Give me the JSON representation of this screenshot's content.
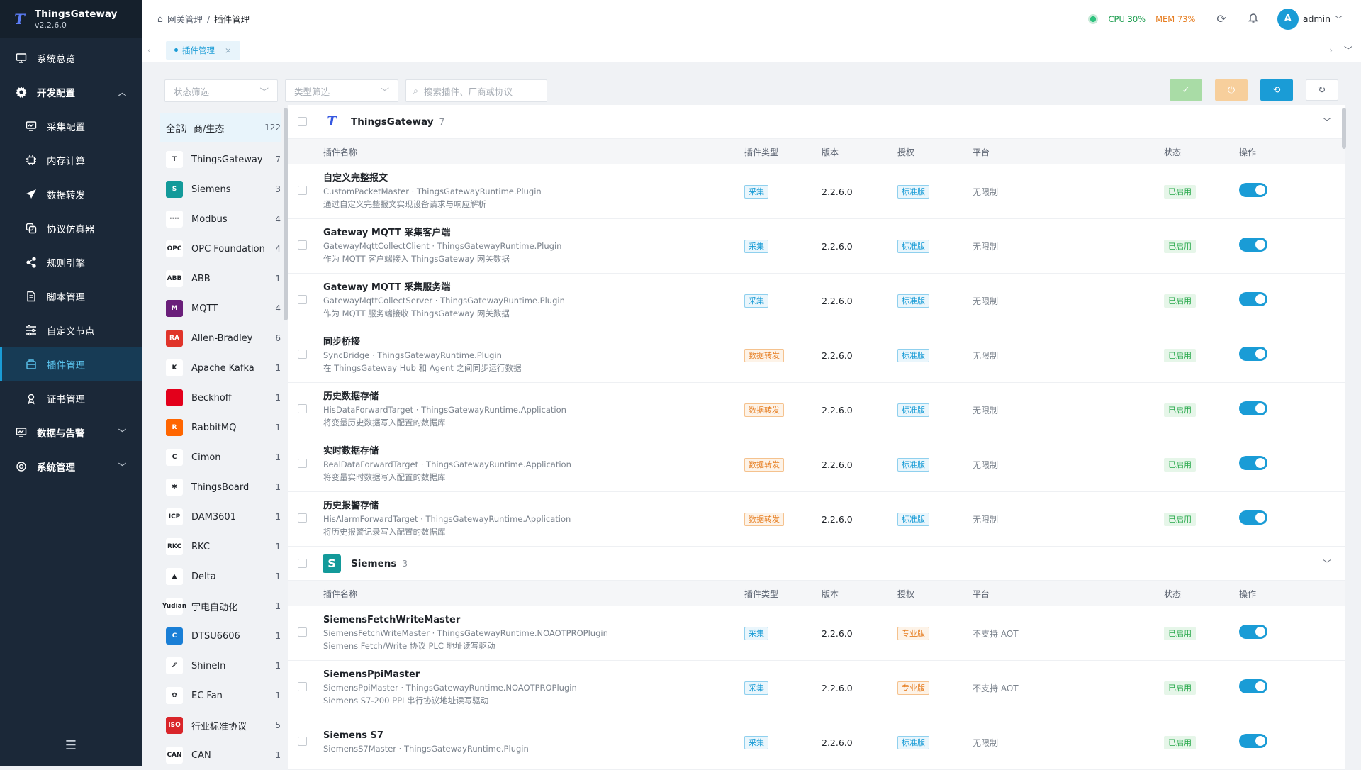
{
  "app": {
    "name": "ThingsGateway",
    "version": "v2.2.6.0"
  },
  "sidebar": {
    "items": [
      {
        "label": "系统总览",
        "icon": "monitor-icon"
      },
      {
        "label": "开发配置",
        "icon": "gear-icon",
        "expanded": true
      },
      {
        "label": "采集配置",
        "icon": "collect-icon"
      },
      {
        "label": "内存计算",
        "icon": "chip-icon"
      },
      {
        "label": "数据转发",
        "icon": "send-icon"
      },
      {
        "label": "协议仿真器",
        "icon": "simulator-icon"
      },
      {
        "label": "规则引擎",
        "icon": "share-icon"
      },
      {
        "label": "脚本管理",
        "icon": "document-icon"
      },
      {
        "label": "自定义节点",
        "icon": "sliders-icon"
      },
      {
        "label": "插件管理",
        "icon": "plugin-icon",
        "active": true
      },
      {
        "label": "证书管理",
        "icon": "certificate-icon"
      },
      {
        "label": "数据与告警",
        "icon": "monitor-icon",
        "expanded": false
      },
      {
        "label": "系统管理",
        "icon": "settings-icon",
        "expanded": false
      }
    ]
  },
  "header": {
    "breadcrumb": [
      "网关管理",
      "插件管理"
    ],
    "cpu": "CPU 30%",
    "mem": "MEM 73%",
    "user": "admin",
    "avatar_letter": "A"
  },
  "tabs": [
    {
      "label": "插件管理"
    }
  ],
  "filters": {
    "status_placeholder": "状态筛选",
    "type_placeholder": "类型筛选",
    "search_placeholder": "搜索插件、厂商或协议"
  },
  "vendors": {
    "all": {
      "label": "全部厂商/生态",
      "count": "122"
    },
    "items": [
      {
        "name": "ThingsGateway",
        "count": "7",
        "abbr": "T",
        "color": "#ffffff"
      },
      {
        "name": "Siemens",
        "count": "3",
        "abbr": "S",
        "color": "#139a9a"
      },
      {
        "name": "Modbus",
        "count": "4",
        "abbr": "····",
        "color": "#ffffff"
      },
      {
        "name": "OPC Foundation",
        "count": "4",
        "abbr": "OPC",
        "color": "#ffffff"
      },
      {
        "name": "ABB",
        "count": "1",
        "abbr": "ABB",
        "color": "#ffffff"
      },
      {
        "name": "MQTT",
        "count": "4",
        "abbr": "M",
        "color": "#6a1f7a"
      },
      {
        "name": "Allen-Bradley",
        "count": "6",
        "abbr": "RA",
        "color": "#e0342a"
      },
      {
        "name": "Apache Kafka",
        "count": "1",
        "abbr": "K",
        "color": "#ffffff"
      },
      {
        "name": "Beckhoff",
        "count": "1",
        "abbr": "",
        "color": "#e3001b"
      },
      {
        "name": "RabbitMQ",
        "count": "1",
        "abbr": "R",
        "color": "#ff6600"
      },
      {
        "name": "Cimon",
        "count": "1",
        "abbr": "C",
        "color": "#ffffff"
      },
      {
        "name": "ThingsBoard",
        "count": "1",
        "abbr": "✱",
        "color": "#ffffff"
      },
      {
        "name": "DAM3601",
        "count": "1",
        "abbr": "ICP",
        "color": "#ffffff"
      },
      {
        "name": "RKC",
        "count": "1",
        "abbr": "RKC",
        "color": "#ffffff"
      },
      {
        "name": "Delta",
        "count": "1",
        "abbr": "▲",
        "color": "#ffffff"
      },
      {
        "name": "宇电自动化",
        "count": "1",
        "abbr": "Yudian",
        "color": "#ffffff"
      },
      {
        "name": "DTSU6606",
        "count": "1",
        "abbr": "C",
        "color": "#1a7fd6"
      },
      {
        "name": "ShineIn",
        "count": "1",
        "abbr": "⁄⁄",
        "color": "#ffffff"
      },
      {
        "name": "EC Fan",
        "count": "1",
        "abbr": "✿",
        "color": "#ffffff"
      },
      {
        "name": "行业标准协议",
        "count": "5",
        "abbr": "ISO",
        "color": "#d9252a"
      },
      {
        "name": "CAN",
        "count": "1",
        "abbr": "CAN",
        "color": "#ffffff"
      }
    ]
  },
  "table_headers": {
    "name": "插件名称",
    "type": "插件类型",
    "version": "版本",
    "license": "授权",
    "platform": "平台",
    "status": "状态",
    "op": "操作"
  },
  "groups": [
    {
      "name": "ThingsGateway",
      "count": "7",
      "rows": [
        {
          "name": "自定义完整报文",
          "sub": "CustomPacketMaster · ThingsGatewayRuntime.Plugin",
          "desc": "通过自定义完整报文实现设备请求与响应解析",
          "type": "采集",
          "type_kind": "blue",
          "version": "2.2.6.0",
          "license": "标准版",
          "license_kind": "blue",
          "platform": "无限制",
          "status": "已启用",
          "enabled": true
        },
        {
          "name": "Gateway MQTT 采集客户端",
          "sub": "GatewayMqttCollectClient · ThingsGatewayRuntime.Plugin",
          "desc": "作为 MQTT 客户端接入 ThingsGateway 网关数据",
          "type": "采集",
          "type_kind": "blue",
          "version": "2.2.6.0",
          "license": "标准版",
          "license_kind": "blue",
          "platform": "无限制",
          "status": "已启用",
          "enabled": true
        },
        {
          "name": "Gateway MQTT 采集服务端",
          "sub": "GatewayMqttCollectServer · ThingsGatewayRuntime.Plugin",
          "desc": "作为 MQTT 服务端接收 ThingsGateway 网关数据",
          "type": "采集",
          "type_kind": "blue",
          "version": "2.2.6.0",
          "license": "标准版",
          "license_kind": "blue",
          "platform": "无限制",
          "status": "已启用",
          "enabled": true
        },
        {
          "name": "同步桥接",
          "sub": "SyncBridge · ThingsGatewayRuntime.Plugin",
          "desc": "在 ThingsGateway Hub 和 Agent 之间同步运行数据",
          "type": "数据转发",
          "type_kind": "orange",
          "version": "2.2.6.0",
          "license": "标准版",
          "license_kind": "blue",
          "platform": "无限制",
          "status": "已启用",
          "enabled": true
        },
        {
          "name": "历史数据存储",
          "sub": "HisDataForwardTarget · ThingsGatewayRuntime.Application",
          "desc": "将变量历史数据写入配置的数据库",
          "type": "数据转发",
          "type_kind": "orange",
          "version": "2.2.6.0",
          "license": "标准版",
          "license_kind": "blue",
          "platform": "无限制",
          "status": "已启用",
          "enabled": true
        },
        {
          "name": "实时数据存储",
          "sub": "RealDataForwardTarget · ThingsGatewayRuntime.Application",
          "desc": "将变量实时数据写入配置的数据库",
          "type": "数据转发",
          "type_kind": "orange",
          "version": "2.2.6.0",
          "license": "标准版",
          "license_kind": "blue",
          "platform": "无限制",
          "status": "已启用",
          "enabled": true
        },
        {
          "name": "历史报警存储",
          "sub": "HisAlarmForwardTarget · ThingsGatewayRuntime.Application",
          "desc": "将历史报警记录写入配置的数据库",
          "type": "数据转发",
          "type_kind": "orange",
          "version": "2.2.6.0",
          "license": "标准版",
          "license_kind": "blue",
          "platform": "无限制",
          "status": "已启用",
          "enabled": true
        }
      ]
    },
    {
      "name": "Siemens",
      "count": "3",
      "rows": [
        {
          "name": "SiemensFetchWriteMaster",
          "sub": "SiemensFetchWriteMaster · ThingsGatewayRuntime.NOAOTPROPlugin",
          "desc": "Siemens Fetch/Write 协议 PLC 地址读写驱动",
          "type": "采集",
          "type_kind": "blue",
          "version": "2.2.6.0",
          "license": "专业版",
          "license_kind": "orange",
          "platform": "不支持 AOT",
          "status": "已启用",
          "enabled": true
        },
        {
          "name": "SiemensPpiMaster",
          "sub": "SiemensPpiMaster · ThingsGatewayRuntime.NOAOTPROPlugin",
          "desc": "Siemens S7-200 PPI 串行协议地址读写驱动",
          "type": "采集",
          "type_kind": "blue",
          "version": "2.2.6.0",
          "license": "专业版",
          "license_kind": "orange",
          "platform": "不支持 AOT",
          "status": "已启用",
          "enabled": true
        },
        {
          "name": "Siemens S7",
          "sub": "SiemensS7Master · ThingsGatewayRuntime.Plugin",
          "desc": "",
          "type": "采集",
          "type_kind": "blue",
          "version": "2.2.6.0",
          "license": "标准版",
          "license_kind": "blue",
          "platform": "无限制",
          "status": "已启用",
          "enabled": true
        }
      ]
    }
  ]
}
